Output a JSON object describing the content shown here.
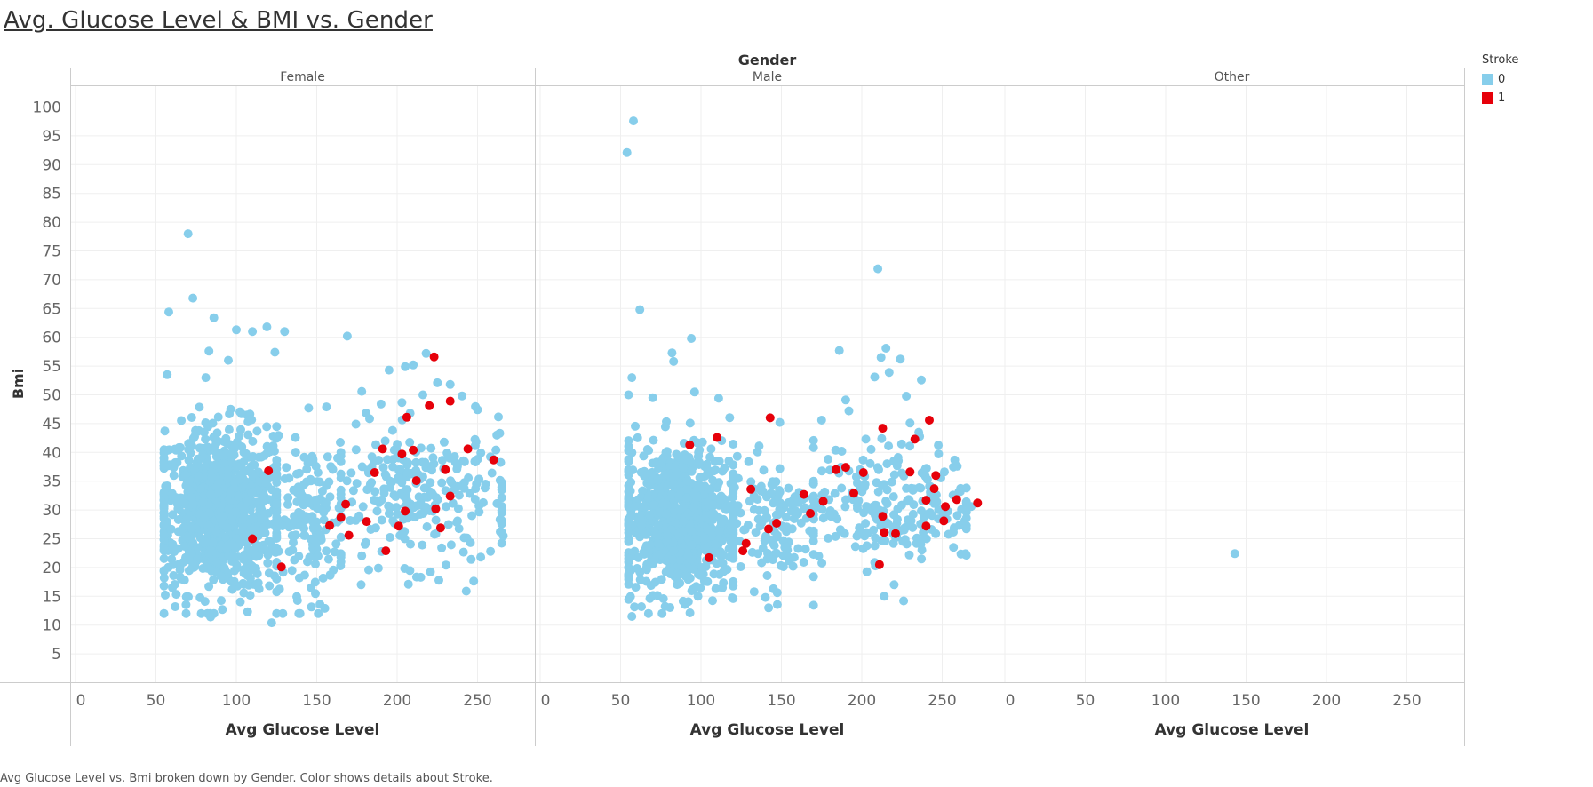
{
  "title": "Avg. Glucose Level & BMI vs. Gender",
  "caption": "Avg Glucose Level vs. Bmi broken down by Gender.  Color shows details about Stroke.",
  "colors": {
    "no_stroke": "#87CEEB",
    "stroke": "#E6000A",
    "grid": "#efefef",
    "axis": "#cccccc"
  },
  "legend": {
    "title": "Stroke",
    "items": [
      {
        "label": "0",
        "color": "#87CEEB"
      },
      {
        "label": "1",
        "color": "#E6000A"
      }
    ]
  },
  "chart_data": {
    "type": "scatter",
    "column_header": "Gender",
    "panels": [
      "Female",
      "Male",
      "Other"
    ],
    "xlabel": "Avg Glucose Level",
    "ylabel": "Bmi",
    "xlim": [
      0,
      290
    ],
    "ylim": [
      0,
      105
    ],
    "x_ticks": [
      0,
      50,
      100,
      150,
      200,
      250
    ],
    "y_ticks": [
      5,
      10,
      15,
      20,
      25,
      30,
      35,
      40,
      45,
      50,
      55,
      60,
      65,
      70,
      75,
      80,
      85,
      90,
      95,
      100
    ],
    "grid": true,
    "legend_position": "right",
    "clusters": {
      "Female": [
        {
          "x_range": [
            55,
            125
          ],
          "y_range": [
            15,
            45
          ],
          "count": 900,
          "stroke": 0
        },
        {
          "x_range": [
            125,
            165
          ],
          "y_range": [
            15,
            42
          ],
          "count": 160,
          "stroke": 0
        },
        {
          "x_range": [
            165,
            265
          ],
          "y_range": [
            20,
            45
          ],
          "count": 260,
          "stroke": 0
        }
      ],
      "Male": [
        {
          "x_range": [
            55,
            120
          ],
          "y_range": [
            15,
            42
          ],
          "count": 800,
          "stroke": 0
        },
        {
          "x_range": [
            120,
            170
          ],
          "y_range": [
            16,
            40
          ],
          "count": 140,
          "stroke": 0
        },
        {
          "x_range": [
            170,
            265
          ],
          "y_range": [
            20,
            42
          ],
          "count": 230,
          "stroke": 0
        }
      ]
    },
    "points": {
      "Female": [
        {
          "x": 70,
          "y": 78,
          "stroke": 0
        },
        {
          "x": 73,
          "y": 66.8,
          "stroke": 0
        },
        {
          "x": 58,
          "y": 64.4,
          "stroke": 0
        },
        {
          "x": 86,
          "y": 63.4,
          "stroke": 0
        },
        {
          "x": 119,
          "y": 61.8,
          "stroke": 0
        },
        {
          "x": 100,
          "y": 61.3,
          "stroke": 0
        },
        {
          "x": 110,
          "y": 61,
          "stroke": 0
        },
        {
          "x": 130,
          "y": 61,
          "stroke": 0
        },
        {
          "x": 169,
          "y": 60.2,
          "stroke": 0
        },
        {
          "x": 124,
          "y": 57.4,
          "stroke": 0
        },
        {
          "x": 83,
          "y": 57.6,
          "stroke": 0
        },
        {
          "x": 95,
          "y": 56,
          "stroke": 0
        },
        {
          "x": 218,
          "y": 57.2,
          "stroke": 0
        },
        {
          "x": 210,
          "y": 55.2,
          "stroke": 0
        },
        {
          "x": 205,
          "y": 54.9,
          "stroke": 0
        },
        {
          "x": 195,
          "y": 54.3,
          "stroke": 0
        },
        {
          "x": 57,
          "y": 53.5,
          "stroke": 0
        },
        {
          "x": 225,
          "y": 52.1,
          "stroke": 0
        },
        {
          "x": 233,
          "y": 51.8,
          "stroke": 0
        },
        {
          "x": 178,
          "y": 50.6,
          "stroke": 0
        },
        {
          "x": 216,
          "y": 50,
          "stroke": 0
        },
        {
          "x": 145,
          "y": 47.7,
          "stroke": 0
        },
        {
          "x": 156,
          "y": 47.9,
          "stroke": 0
        },
        {
          "x": 250,
          "y": 47.4,
          "stroke": 0
        },
        {
          "x": 190,
          "y": 48.4,
          "stroke": 0
        },
        {
          "x": 262,
          "y": 43,
          "stroke": 0
        },
        {
          "x": 265,
          "y": 29.5,
          "stroke": 0
        },
        {
          "x": 266,
          "y": 25.5,
          "stroke": 0
        },
        {
          "x": 243,
          "y": 15.9,
          "stroke": 0
        },
        {
          "x": 207,
          "y": 17.1,
          "stroke": 0
        },
        {
          "x": 122,
          "y": 10.4,
          "stroke": 0
        },
        {
          "x": 107,
          "y": 12.3,
          "stroke": 0
        },
        {
          "x": 84,
          "y": 11.4,
          "stroke": 0
        },
        {
          "x": 155,
          "y": 12.9,
          "stroke": 0
        },
        {
          "x": 152,
          "y": 13.6,
          "stroke": 0
        },
        {
          "x": 62,
          "y": 13.2,
          "stroke": 0
        },
        {
          "x": 246,
          "y": 21.4,
          "stroke": 0
        },
        {
          "x": 252,
          "y": 21.8,
          "stroke": 0
        },
        {
          "x": 223,
          "y": 56.6,
          "stroke": 1
        },
        {
          "x": 233,
          "y": 48.9,
          "stroke": 1
        },
        {
          "x": 220,
          "y": 48.1,
          "stroke": 1
        },
        {
          "x": 206,
          "y": 46.1,
          "stroke": 1
        },
        {
          "x": 244,
          "y": 40.6,
          "stroke": 1
        },
        {
          "x": 191,
          "y": 40.6,
          "stroke": 1
        },
        {
          "x": 210,
          "y": 40.4,
          "stroke": 1
        },
        {
          "x": 203,
          "y": 39.7,
          "stroke": 1
        },
        {
          "x": 260,
          "y": 38.7,
          "stroke": 1
        },
        {
          "x": 120,
          "y": 36.8,
          "stroke": 1
        },
        {
          "x": 186,
          "y": 36.5,
          "stroke": 1
        },
        {
          "x": 230,
          "y": 37,
          "stroke": 1
        },
        {
          "x": 212,
          "y": 35.1,
          "stroke": 1
        },
        {
          "x": 233,
          "y": 32.4,
          "stroke": 1
        },
        {
          "x": 168,
          "y": 31,
          "stroke": 1
        },
        {
          "x": 224,
          "y": 30.2,
          "stroke": 1
        },
        {
          "x": 205,
          "y": 29.8,
          "stroke": 1
        },
        {
          "x": 165,
          "y": 28.7,
          "stroke": 1
        },
        {
          "x": 181,
          "y": 28,
          "stroke": 1
        },
        {
          "x": 158,
          "y": 27.3,
          "stroke": 1
        },
        {
          "x": 227,
          "y": 26.9,
          "stroke": 1
        },
        {
          "x": 201,
          "y": 27.2,
          "stroke": 1
        },
        {
          "x": 128,
          "y": 20.1,
          "stroke": 1
        },
        {
          "x": 193,
          "y": 22.9,
          "stroke": 1
        },
        {
          "x": 110,
          "y": 25,
          "stroke": 1
        },
        {
          "x": 170,
          "y": 25.6,
          "stroke": 1
        }
      ],
      "Male": [
        {
          "x": 58,
          "y": 97.6,
          "stroke": 0
        },
        {
          "x": 54,
          "y": 92.1,
          "stroke": 0
        },
        {
          "x": 210,
          "y": 71.9,
          "stroke": 0
        },
        {
          "x": 62,
          "y": 64.8,
          "stroke": 0
        },
        {
          "x": 94,
          "y": 59.8,
          "stroke": 0
        },
        {
          "x": 215,
          "y": 58.1,
          "stroke": 0
        },
        {
          "x": 186,
          "y": 57.7,
          "stroke": 0
        },
        {
          "x": 212,
          "y": 56.5,
          "stroke": 0
        },
        {
          "x": 224,
          "y": 56.2,
          "stroke": 0
        },
        {
          "x": 82,
          "y": 57.3,
          "stroke": 0
        },
        {
          "x": 217,
          "y": 53.9,
          "stroke": 0
        },
        {
          "x": 237,
          "y": 52.6,
          "stroke": 0
        },
        {
          "x": 83,
          "y": 55.8,
          "stroke": 0
        },
        {
          "x": 208,
          "y": 53.1,
          "stroke": 0
        },
        {
          "x": 57,
          "y": 53,
          "stroke": 0
        },
        {
          "x": 96,
          "y": 50.5,
          "stroke": 0
        },
        {
          "x": 70,
          "y": 49.5,
          "stroke": 0
        },
        {
          "x": 111,
          "y": 49.4,
          "stroke": 0
        },
        {
          "x": 190,
          "y": 49.1,
          "stroke": 0
        },
        {
          "x": 192,
          "y": 47.2,
          "stroke": 0
        },
        {
          "x": 175,
          "y": 45.6,
          "stroke": 0
        },
        {
          "x": 149,
          "y": 45.2,
          "stroke": 0
        },
        {
          "x": 230,
          "y": 45.1,
          "stroke": 0
        },
        {
          "x": 257,
          "y": 23.5,
          "stroke": 0
        },
        {
          "x": 262,
          "y": 30.1,
          "stroke": 0
        },
        {
          "x": 268,
          "y": 30.6,
          "stroke": 0
        },
        {
          "x": 214,
          "y": 15,
          "stroke": 0
        },
        {
          "x": 226,
          "y": 14.2,
          "stroke": 0
        },
        {
          "x": 57,
          "y": 11.5,
          "stroke": 0
        },
        {
          "x": 63,
          "y": 13.2,
          "stroke": 0
        },
        {
          "x": 145,
          "y": 16.3,
          "stroke": 0
        },
        {
          "x": 242,
          "y": 45.6,
          "stroke": 1
        },
        {
          "x": 143,
          "y": 46,
          "stroke": 1
        },
        {
          "x": 213,
          "y": 44.2,
          "stroke": 1
        },
        {
          "x": 233,
          "y": 42.3,
          "stroke": 1
        },
        {
          "x": 110,
          "y": 42.6,
          "stroke": 1
        },
        {
          "x": 93,
          "y": 41.3,
          "stroke": 1
        },
        {
          "x": 190,
          "y": 37.4,
          "stroke": 1
        },
        {
          "x": 184,
          "y": 37,
          "stroke": 1
        },
        {
          "x": 201,
          "y": 36.5,
          "stroke": 1
        },
        {
          "x": 230,
          "y": 36.6,
          "stroke": 1
        },
        {
          "x": 246,
          "y": 36,
          "stroke": 1
        },
        {
          "x": 245,
          "y": 33.7,
          "stroke": 1
        },
        {
          "x": 131,
          "y": 33.6,
          "stroke": 1
        },
        {
          "x": 164,
          "y": 32.7,
          "stroke": 1
        },
        {
          "x": 195,
          "y": 32.9,
          "stroke": 1
        },
        {
          "x": 259,
          "y": 31.8,
          "stroke": 1
        },
        {
          "x": 272,
          "y": 31.2,
          "stroke": 1
        },
        {
          "x": 240,
          "y": 31.7,
          "stroke": 1
        },
        {
          "x": 176,
          "y": 31.5,
          "stroke": 1
        },
        {
          "x": 252,
          "y": 30.6,
          "stroke": 1
        },
        {
          "x": 168,
          "y": 29.4,
          "stroke": 1
        },
        {
          "x": 213,
          "y": 28.9,
          "stroke": 1
        },
        {
          "x": 251,
          "y": 28.1,
          "stroke": 1
        },
        {
          "x": 240,
          "y": 27.2,
          "stroke": 1
        },
        {
          "x": 147,
          "y": 27.7,
          "stroke": 1
        },
        {
          "x": 214,
          "y": 26.1,
          "stroke": 1
        },
        {
          "x": 221,
          "y": 25.9,
          "stroke": 1
        },
        {
          "x": 142,
          "y": 26.7,
          "stroke": 1
        },
        {
          "x": 128,
          "y": 24.2,
          "stroke": 1
        },
        {
          "x": 126,
          "y": 22.9,
          "stroke": 1
        },
        {
          "x": 211,
          "y": 20.5,
          "stroke": 1
        },
        {
          "x": 105,
          "y": 21.7,
          "stroke": 1
        }
      ],
      "Other": [
        {
          "x": 143,
          "y": 22.4,
          "stroke": 0
        }
      ]
    }
  }
}
